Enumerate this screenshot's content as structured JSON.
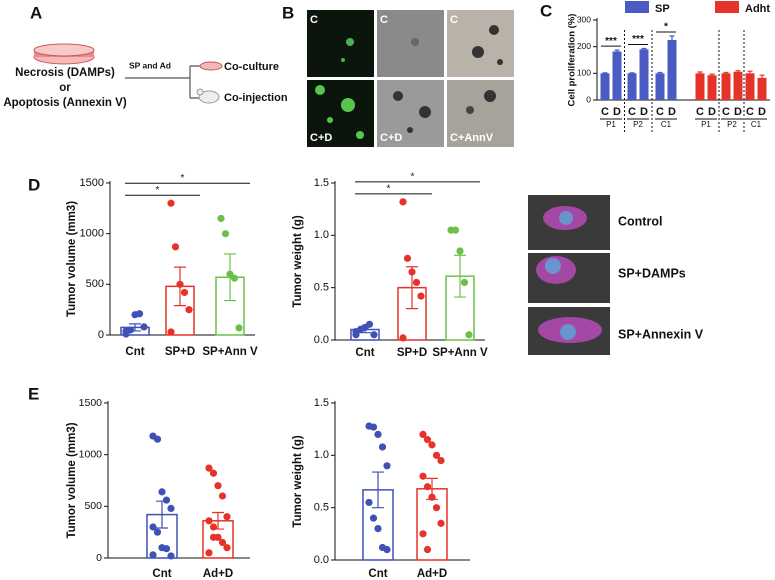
{
  "panel_labels": [
    "A",
    "B",
    "C",
    "D",
    "E"
  ],
  "schematic": {
    "left_lines": [
      "Necrosis (DAMPs)",
      "or",
      "Apoptosis (Annexin V)"
    ],
    "arrow_label": "SP and Ad",
    "outputs": [
      "Co-culture",
      "Co-injection"
    ]
  },
  "micrographs": {
    "labels": [
      "C",
      "C",
      "C",
      "C+D",
      "C+D",
      "C+AnnV"
    ]
  },
  "ultrasound": {
    "labels": [
      "Control",
      "SP+DAMPs",
      "SP+Annexin V"
    ]
  },
  "chart_data": [
    {
      "type": "bar",
      "y_label": "Cell proliferation (%)",
      "legend": "top",
      "categories": [
        "C",
        "D",
        "C",
        "D",
        "C",
        "D",
        "C",
        "D",
        "C",
        "D",
        "C",
        "D"
      ],
      "group_labels": [
        "P1",
        "P2",
        "C1",
        "P1",
        "P2",
        "C1"
      ],
      "series": [
        {
          "name": "SP",
          "color": "#4a5bc4",
          "values": [
            100,
            182,
            100,
            190,
            100,
            225,
            null,
            null,
            null,
            null,
            null,
            null
          ],
          "errors": [
            2,
            5,
            2,
            3,
            3,
            15,
            null,
            null,
            null,
            null,
            null,
            null
          ]
        },
        {
          "name": "Adht",
          "color": "#e5332a",
          "values": [
            null,
            null,
            null,
            null,
            null,
            null,
            100,
            93,
            100,
            106,
            100,
            83
          ],
          "errors": [
            null,
            null,
            null,
            null,
            null,
            null,
            5,
            4,
            3,
            4,
            8,
            10
          ]
        }
      ],
      "significance": [
        {
          "label": "***",
          "between": [
            0,
            1
          ]
        },
        {
          "label": "***",
          "between": [
            2,
            3
          ]
        },
        {
          "label": "*",
          "between": [
            4,
            5
          ]
        }
      ],
      "ylim": [
        0,
        300
      ],
      "yticks": [
        0,
        100,
        200,
        300
      ]
    },
    {
      "type": "bar_dots",
      "y_label": "Tumor volume (mm3)",
      "categories": [
        "Cnt",
        "SP+D",
        "SP+Ann V"
      ],
      "colors": [
        "#3f51b5",
        "#e5332a",
        "#6cc04a"
      ],
      "values": [
        75,
        480,
        570
      ],
      "errors": [
        35,
        190,
        230
      ],
      "points": [
        [
          10,
          50,
          200,
          210,
          80,
          40
        ],
        [
          1300,
          870,
          500,
          420,
          250,
          30
        ],
        [
          1150,
          1000,
          600,
          560,
          70
        ]
      ],
      "significance": [
        {
          "label": "*",
          "between": [
            0,
            1
          ]
        },
        {
          "label": "*",
          "between": [
            0,
            2
          ]
        }
      ],
      "ylim": [
        0,
        1500
      ],
      "yticks": [
        0,
        500,
        1000,
        1500
      ]
    },
    {
      "type": "bar_dots",
      "y_label": "Tumor weight (g)",
      "categories": [
        "Cnt",
        "SP+D",
        "SP+Ann V"
      ],
      "colors": [
        "#3f51b5",
        "#e5332a",
        "#6cc04a"
      ],
      "values": [
        0.1,
        0.5,
        0.61
      ],
      "errors": [
        0.03,
        0.2,
        0.2
      ],
      "points": [
        [
          0.05,
          0.1,
          0.12,
          0.15,
          0.05,
          0.08
        ],
        [
          1.32,
          0.78,
          0.65,
          0.55,
          0.42,
          0.02
        ],
        [
          1.05,
          1.05,
          0.85,
          0.55,
          0.05
        ]
      ],
      "significance": [
        {
          "label": "*",
          "between": [
            0,
            1
          ]
        },
        {
          "label": "*",
          "between": [
            0,
            2
          ]
        }
      ],
      "ylim": [
        0,
        1.5
      ],
      "yticks": [
        {
          "value": 0,
          "label": "0.0"
        },
        0.5,
        {
          "value": 1,
          "label": "1.0"
        },
        1.5
      ]
    },
    {
      "type": "bar_dots",
      "y_label": "Tumor volume (mm3)",
      "categories": [
        "Cnt",
        "Ad+D"
      ],
      "colors": [
        "#3f51b5",
        "#e5332a"
      ],
      "values": [
        420,
        360
      ],
      "errors": [
        130,
        80
      ],
      "points": [
        [
          1180,
          1150,
          640,
          560,
          480,
          300,
          250,
          100,
          90,
          20,
          30
        ],
        [
          870,
          820,
          700,
          600,
          400,
          360,
          300,
          200,
          150,
          100,
          50,
          200
        ]
      ],
      "significance": [],
      "ylim": [
        0,
        1500
      ],
      "yticks": [
        0,
        500,
        1000,
        1500
      ]
    },
    {
      "type": "bar_dots",
      "y_label": "Tumor weight (g)",
      "categories": [
        "Cnt",
        "Ad+D"
      ],
      "colors": [
        "#3f51b5",
        "#e5332a"
      ],
      "values": [
        0.67,
        0.68
      ],
      "errors": [
        0.17,
        0.1
      ],
      "points": [
        [
          1.28,
          1.27,
          1.2,
          1.08,
          0.9,
          0.55,
          0.4,
          0.3,
          0.12,
          0.1
        ],
        [
          1.2,
          1.15,
          1.1,
          1.0,
          0.95,
          0.8,
          0.7,
          0.6,
          0.5,
          0.35,
          0.25,
          0.1
        ]
      ],
      "significance": [],
      "ylim": [
        0,
        1.5
      ],
      "yticks": [
        {
          "value": 0,
          "label": "0.0"
        },
        0.5,
        {
          "value": 1,
          "label": "1.0"
        },
        1.5
      ]
    }
  ]
}
